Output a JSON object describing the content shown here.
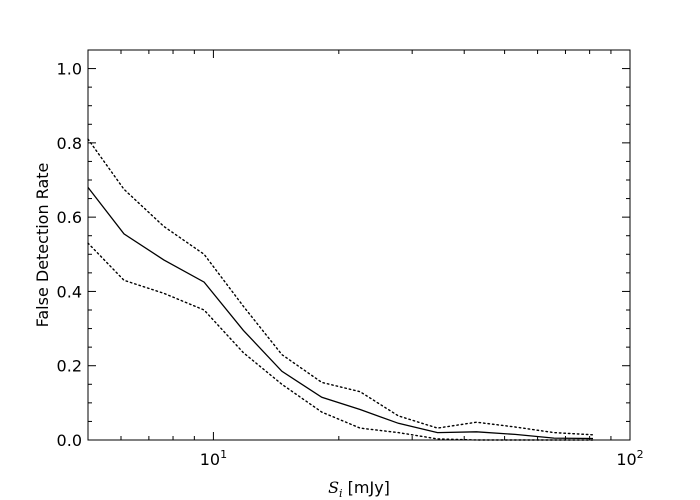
{
  "chart_data": {
    "type": "line",
    "xscale": "log",
    "xlim": [
      5,
      100
    ],
    "ylim": [
      0,
      1.05
    ],
    "xlabel": {
      "symbol": "S",
      "subscript": "i",
      "unit": " [mJy]"
    },
    "ylabel": "False Detection Rate",
    "x_ticks": [
      {
        "value": 10,
        "base": "10",
        "exp": "1"
      },
      {
        "value": 100,
        "base": "10",
        "exp": "2"
      }
    ],
    "y_ticks": [
      {
        "value": 0.0,
        "label": "0.0"
      },
      {
        "value": 0.2,
        "label": "0.2"
      },
      {
        "value": 0.4,
        "label": "0.4"
      },
      {
        "value": 0.6,
        "label": "0.6"
      },
      {
        "value": 0.8,
        "label": "0.8"
      },
      {
        "value": 1.0,
        "label": "1.0"
      }
    ],
    "grid": false,
    "legend": "none",
    "series": [
      {
        "style": "solid",
        "points": [
          [
            5.0,
            0.68
          ],
          [
            6.1,
            0.555
          ],
          [
            7.6,
            0.485
          ],
          [
            9.5,
            0.425
          ],
          [
            11.8,
            0.295
          ],
          [
            14.6,
            0.185
          ],
          [
            18.2,
            0.115
          ],
          [
            22.5,
            0.082
          ],
          [
            27.8,
            0.045
          ],
          [
            34.5,
            0.02
          ],
          [
            42.8,
            0.022
          ],
          [
            53.0,
            0.015
          ],
          [
            65.7,
            0.005
          ],
          [
            81.5,
            0.004
          ]
        ]
      },
      {
        "style": "dotted",
        "points": [
          [
            5.0,
            0.81
          ],
          [
            6.1,
            0.675
          ],
          [
            7.6,
            0.575
          ],
          [
            9.5,
            0.5
          ],
          [
            11.8,
            0.36
          ],
          [
            14.6,
            0.23
          ],
          [
            18.2,
            0.155
          ],
          [
            22.5,
            0.13
          ],
          [
            27.8,
            0.065
          ],
          [
            34.5,
            0.032
          ],
          [
            42.8,
            0.048
          ],
          [
            53.0,
            0.035
          ],
          [
            65.7,
            0.02
          ],
          [
            81.5,
            0.014
          ]
        ]
      },
      {
        "style": "dotted",
        "points": [
          [
            5.0,
            0.53
          ],
          [
            6.1,
            0.43
          ],
          [
            7.6,
            0.395
          ],
          [
            9.5,
            0.35
          ],
          [
            11.8,
            0.235
          ],
          [
            14.6,
            0.15
          ],
          [
            18.2,
            0.075
          ],
          [
            22.5,
            0.032
          ],
          [
            27.8,
            0.02
          ],
          [
            34.5,
            0.003
          ],
          [
            42.8,
            0.0
          ],
          [
            53.0,
            0.0
          ],
          [
            65.7,
            0.0
          ],
          [
            81.5,
            0.0
          ]
        ]
      }
    ]
  }
}
